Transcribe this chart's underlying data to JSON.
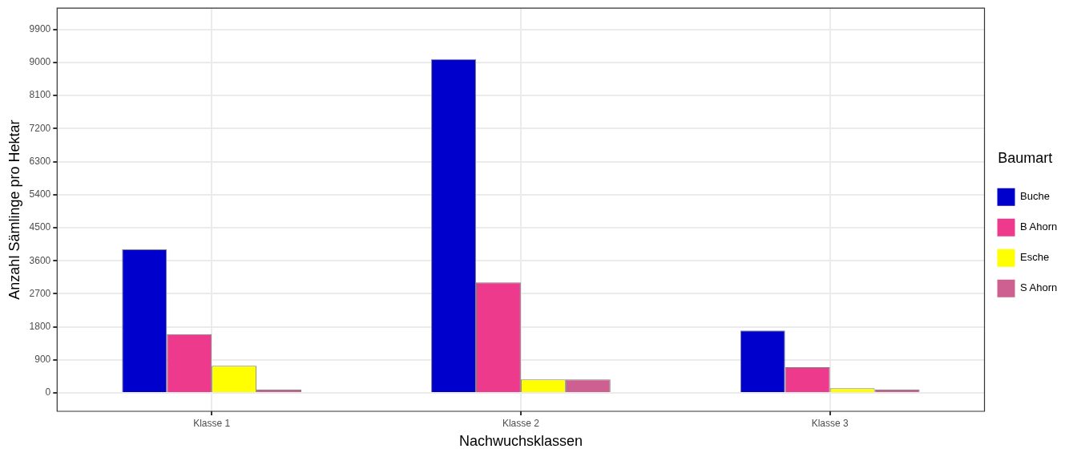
{
  "chart_data": {
    "type": "bar",
    "xlabel": "Nachwuchsklassen",
    "ylabel": "Anzahl Sämlinge pro Hektar",
    "legend_title": "Baumart",
    "categories": [
      "Klasse 1",
      "Klasse 2",
      "Klasse 3"
    ],
    "series": [
      {
        "name": "Buche",
        "color": "#0000cd",
        "values": [
          3910,
          9090,
          1700
        ]
      },
      {
        "name": "B Ahorn",
        "color": "#ee3a8c",
        "values": [
          1600,
          3010,
          700
        ]
      },
      {
        "name": "Esche",
        "color": "#ffff00",
        "values": [
          740,
          370,
          130
        ]
      },
      {
        "name": "S Ahorn",
        "color": "#cd6090",
        "values": [
          90,
          370,
          90
        ]
      }
    ],
    "ylim": [
      -500,
      10480
    ],
    "yticks": [
      0,
      900,
      1800,
      2700,
      3600,
      4500,
      5400,
      6300,
      7200,
      8100,
      9000,
      9900
    ],
    "grid": true,
    "legend": "right"
  }
}
